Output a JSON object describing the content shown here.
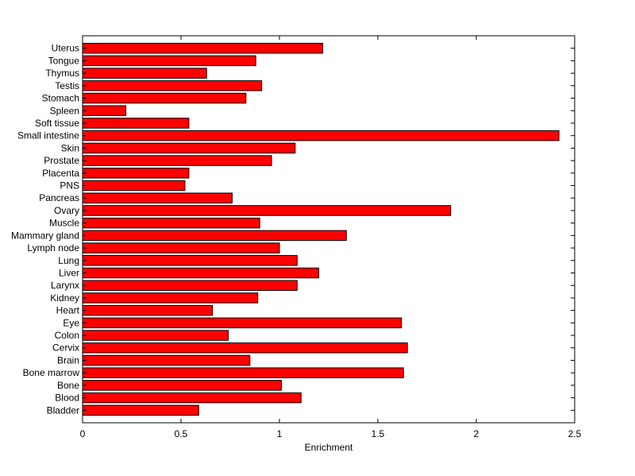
{
  "chart_data": {
    "type": "bar",
    "orientation": "horizontal",
    "title": "",
    "xlabel": "Enrichment",
    "ylabel": "",
    "xlim": [
      0,
      2.5
    ],
    "xticks": [
      "0",
      "0.5",
      "1",
      "1.5",
      "2",
      "2.5"
    ],
    "grid": false,
    "bar_color": "#ff0000",
    "bar_edge_color": "#000000",
    "categories": [
      "Bladder",
      "Blood",
      "Bone",
      "Bone marrow",
      "Brain",
      "Cervix",
      "Colon",
      "Eye",
      "Heart",
      "Kidney",
      "Larynx",
      "Liver",
      "Lung",
      "Lymph node",
      "Mammary gland",
      "Muscle",
      "Ovary",
      "Pancreas",
      "PNS",
      "Placenta",
      "Prostate",
      "Skin",
      "Small intestine",
      "Soft tissue",
      "Spleen",
      "Stomach",
      "Testis",
      "Thymus",
      "Tongue",
      "Uterus"
    ],
    "values": [
      0.59,
      1.11,
      1.01,
      1.63,
      0.85,
      1.65,
      0.74,
      1.62,
      0.66,
      0.89,
      1.09,
      1.2,
      1.09,
      1.0,
      1.34,
      0.9,
      1.87,
      0.76,
      0.52,
      0.54,
      0.96,
      1.08,
      2.42,
      0.54,
      0.22,
      0.83,
      0.91,
      0.63,
      0.88,
      1.22
    ]
  }
}
